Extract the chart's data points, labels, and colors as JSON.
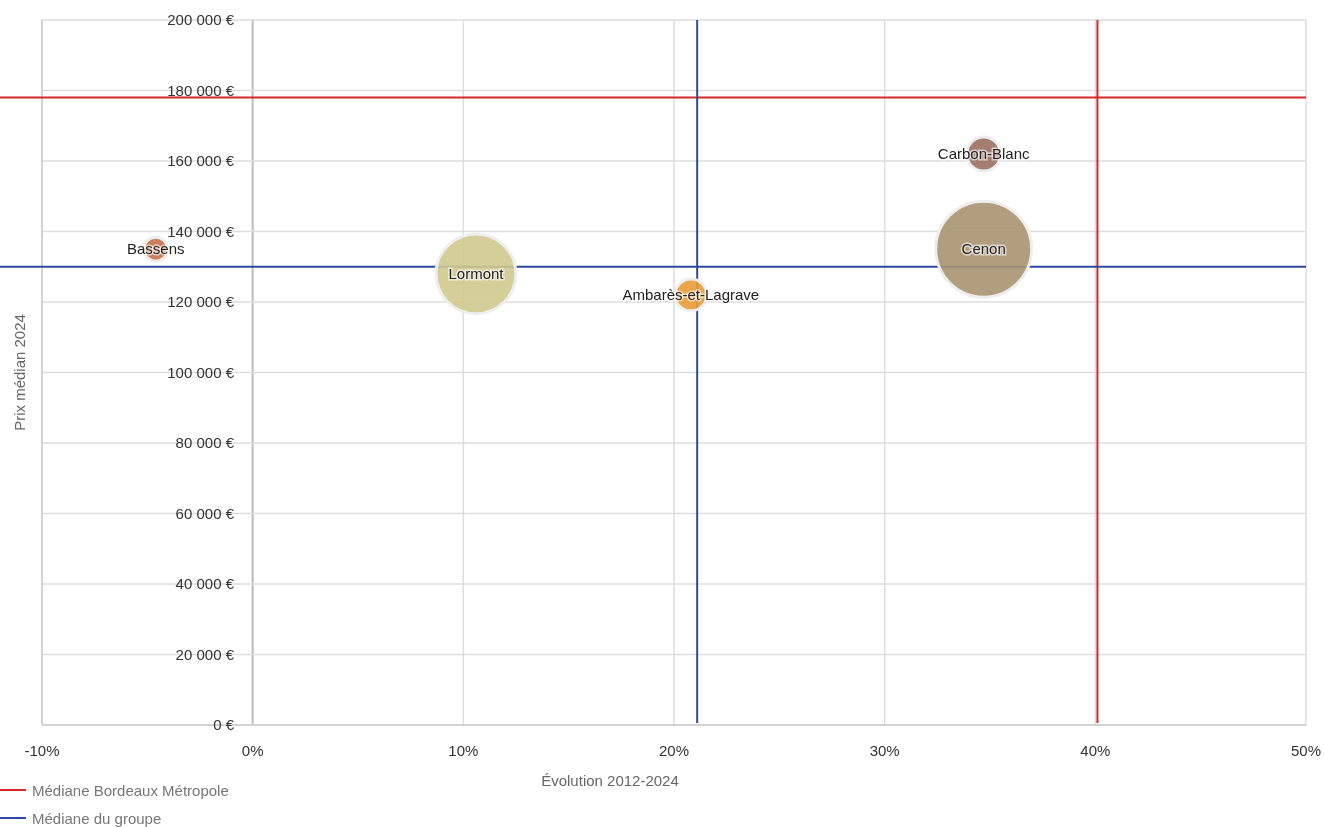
{
  "chart_data": {
    "type": "bubble",
    "xlabel": "Évolution 2012-2024",
    "ylabel": "Prix médian 2024",
    "xlim": [
      -10,
      50
    ],
    "xticks": [
      {
        "value": -10,
        "label": "-10%"
      },
      {
        "value": 0,
        "label": "0%"
      },
      {
        "value": 10,
        "label": "10%"
      },
      {
        "value": 20,
        "label": "20%"
      },
      {
        "value": 30,
        "label": "30%"
      },
      {
        "value": 40,
        "label": "40%"
      },
      {
        "value": 50,
        "label": "50%"
      }
    ],
    "ylim": [
      0,
      200000
    ],
    "yticks": [
      {
        "value": 0,
        "label": "0 €"
      },
      {
        "value": 20000,
        "label": "20 000 €"
      },
      {
        "value": 40000,
        "label": "40 000 €"
      },
      {
        "value": 60000,
        "label": "60 000 €"
      },
      {
        "value": 80000,
        "label": "80 000 €"
      },
      {
        "value": 100000,
        "label": "100 000 €"
      },
      {
        "value": 120000,
        "label": "120 000 €"
      },
      {
        "value": 140000,
        "label": "140 000 €"
      },
      {
        "value": 160000,
        "label": "160 000 €"
      },
      {
        "value": 180000,
        "label": "180 000 €"
      },
      {
        "value": 200000,
        "label": "200 000 €"
      }
    ],
    "grid": true,
    "legend": "bottom left",
    "series": [
      {
        "name": "Bassens",
        "color": "#c8704a",
        "x": [
          -4.6
        ],
        "values": [
          135000
        ],
        "sizes": [
          0.0625
        ]
      },
      {
        "name": "Lormont",
        "color": "#cfca8e",
        "x": [
          10.6
        ],
        "values": [
          128000
        ],
        "sizes": [
          0.69
        ]
      },
      {
        "name": "Ambarès-et-Lagrave",
        "color": "#e89a36",
        "x": [
          20.8
        ],
        "values": [
          122000
        ],
        "sizes": [
          0.11
        ]
      },
      {
        "name": "Carbon-Blanc",
        "color": "#9a7061",
        "x": [
          34.7
        ],
        "values": [
          162000
        ],
        "sizes": [
          0.125
        ]
      },
      {
        "name": "Cenon",
        "color": "#a89470",
        "x": [
          34.7
        ],
        "values": [
          135000
        ],
        "sizes": [
          1
        ]
      }
    ],
    "ref_lines": [
      {
        "axis": "x",
        "value": 40.1,
        "label": "Médiane Bordeaux Métropole",
        "color": "#d62828"
      },
      {
        "axis": "y",
        "value": 178000,
        "color": "#d62828"
      },
      {
        "axis": "x",
        "value": 21.1,
        "label": "Médiane du groupe",
        "color": "#2c4a9e"
      },
      {
        "axis": "y",
        "value": 130000,
        "color": "#2c4a9e"
      }
    ]
  }
}
